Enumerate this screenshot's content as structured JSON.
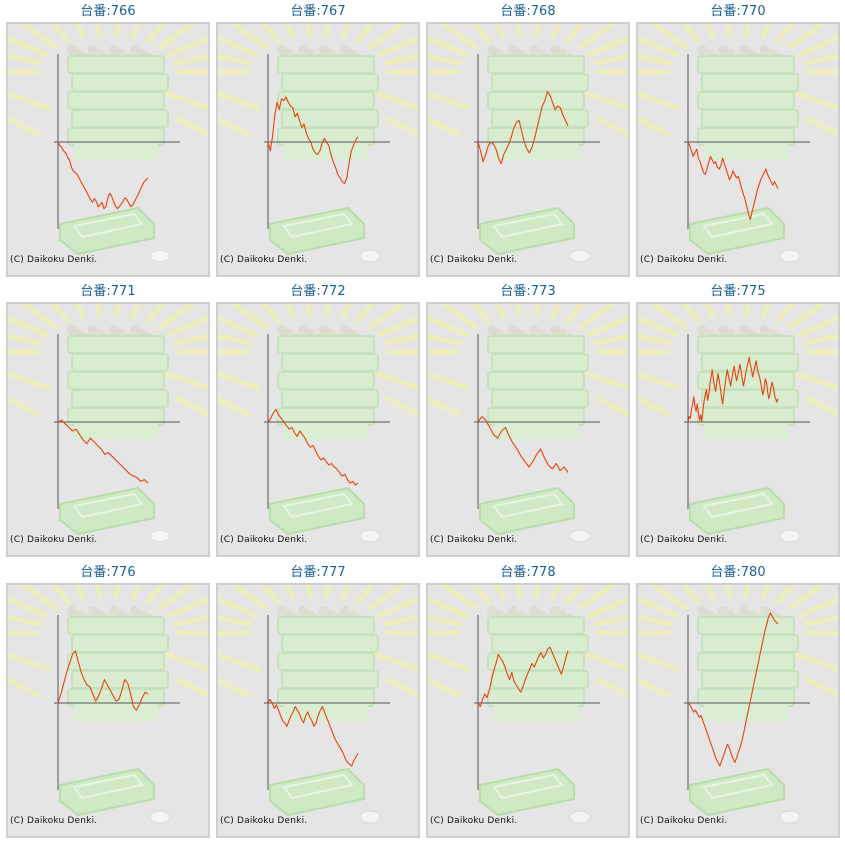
{
  "colors": {
    "series": "#e8420e",
    "axis": "#555555",
    "frame_border": "#cfcfcf",
    "panel_bg": "#e5e5e5",
    "title": "#1a5f96"
  },
  "chart_data": [
    {
      "type": "line",
      "title": "台番:766",
      "footer": "(C) Daikoku Denki.",
      "baseline": 0,
      "y": [
        0,
        -4,
        -6,
        -10,
        -12,
        -17,
        -20,
        -28,
        -32,
        -34,
        -36,
        -40,
        -44,
        -48,
        -52,
        -56,
        -60,
        -64,
        -67,
        -63,
        -66,
        -72,
        -70,
        -67,
        -74,
        -72,
        -62,
        -57,
        -60,
        -66,
        -71,
        -74,
        -72,
        -69,
        -66,
        -62,
        -64,
        -68,
        -72,
        -70,
        -66,
        -62,
        -58,
        -53,
        -48,
        -44,
        -42,
        -40
      ]
    },
    {
      "type": "line",
      "title": "台番:767",
      "footer": "(C) Daikoku Denki.",
      "baseline": 0,
      "y": [
        0,
        -10,
        6,
        30,
        44,
        36,
        48,
        46,
        50,
        44,
        40,
        38,
        28,
        32,
        24,
        16,
        20,
        10,
        4,
        0,
        -8,
        -12,
        -14,
        -10,
        -2,
        4,
        0,
        -4,
        -14,
        -22,
        -28,
        -36,
        -40,
        -44,
        -46,
        -40,
        -24,
        -10,
        -4,
        2,
        6
      ]
    },
    {
      "type": "line",
      "title": "台番:768",
      "footer": "(C) Daikoku Denki.",
      "baseline": 0,
      "y": [
        0,
        -10,
        -22,
        -14,
        -4,
        0,
        -2,
        -8,
        -18,
        -24,
        -14,
        -8,
        -2,
        6,
        16,
        22,
        24,
        12,
        0,
        -8,
        -12,
        -6,
        4,
        16,
        28,
        40,
        46,
        56,
        52,
        44,
        36,
        40,
        38,
        30,
        24,
        18
      ]
    },
    {
      "type": "line",
      "title": "台番:770",
      "footer": "(C) Daikoku Denki.",
      "baseline": 0,
      "y": [
        0,
        -4,
        -10,
        -16,
        -12,
        -8,
        -18,
        -22,
        -28,
        -34,
        -36,
        -30,
        -22,
        -16,
        -20,
        -24,
        -22,
        -28,
        -30,
        -26,
        -18,
        -24,
        -30,
        -36,
        -42,
        -38,
        -32,
        -36,
        -40,
        -38,
        -44,
        -52,
        -58,
        -64,
        -72,
        -80,
        -86,
        -78,
        -70,
        -62,
        -54,
        -48,
        -42,
        -38,
        -34,
        -30,
        -36,
        -40,
        -44,
        -48,
        -44,
        -48,
        -52
      ]
    },
    {
      "type": "line",
      "title": "台番:771",
      "footer": "(C) Daikoku Denki.",
      "baseline": 0,
      "y": [
        0,
        2,
        -2,
        -6,
        -10,
        -8,
        -14,
        -20,
        -24,
        -18,
        -22,
        -26,
        -30,
        -36,
        -34,
        -38,
        -42,
        -46,
        -50,
        -54,
        -58,
        -60,
        -62,
        -66,
        -64,
        -68
      ]
    },
    {
      "type": "line",
      "title": "台番:772",
      "footer": "(C) Daikoku Denki.",
      "baseline": 0,
      "y": [
        0,
        4,
        10,
        14,
        8,
        4,
        0,
        -4,
        -8,
        -6,
        -12,
        -16,
        -10,
        -14,
        -18,
        -24,
        -28,
        -26,
        -32,
        -38,
        -42,
        -40,
        -44,
        -48,
        -46,
        -50,
        -52,
        -56,
        -60,
        -58,
        -64,
        -68,
        -66,
        -70,
        -68
      ]
    },
    {
      "type": "line",
      "title": "台番:773",
      "footer": "(C) Daikoku Denki.",
      "baseline": 0,
      "y": [
        0,
        6,
        2,
        -6,
        -14,
        -18,
        -10,
        -6,
        -16,
        -24,
        -30,
        -38,
        -44,
        -50,
        -44,
        -36,
        -30,
        -40,
        -48,
        -52,
        -46,
        -54,
        -50,
        -56
      ]
    },
    {
      "type": "line",
      "title": "台番:775",
      "footer": "(C) Daikoku Denki.",
      "baseline": 0,
      "y": [
        0,
        6,
        4,
        14,
        20,
        28,
        18,
        12,
        20,
        10,
        2,
        8,
        0,
        14,
        24,
        30,
        36,
        24,
        30,
        42,
        50,
        58,
        48,
        40,
        34,
        44,
        54,
        46,
        38,
        28,
        20,
        30,
        40,
        50,
        58,
        52,
        46,
        40,
        48,
        56,
        62,
        54,
        46,
        50,
        58,
        64,
        56,
        48,
        40,
        46,
        54,
        60,
        66,
        72,
        64,
        58,
        50,
        56,
        62,
        68,
        60,
        54,
        50,
        44,
        36,
        30,
        38,
        48,
        44,
        34,
        26,
        30,
        40,
        44,
        38,
        30,
        26,
        22,
        26
      ]
    },
    {
      "type": "line",
      "title": "台番:776",
      "footer": "(C) Daikoku Denki.",
      "baseline": 0,
      "y": [
        0,
        10,
        22,
        34,
        44,
        54,
        58,
        46,
        34,
        26,
        20,
        18,
        10,
        2,
        8,
        16,
        26,
        20,
        14,
        8,
        2,
        4,
        14,
        26,
        22,
        10,
        -4,
        -8,
        -2,
        6,
        12,
        10
      ]
    },
    {
      "type": "line",
      "title": "台番:777",
      "footer": "(C) Daikoku Denki.",
      "baseline": 0,
      "y": [
        0,
        4,
        0,
        -6,
        -2,
        -8,
        -14,
        -20,
        -22,
        -26,
        -20,
        -14,
        -10,
        -4,
        -8,
        -12,
        -18,
        -22,
        -14,
        -10,
        -16,
        -20,
        -26,
        -22,
        -14,
        -8,
        -4,
        -10,
        -16,
        -22,
        -28,
        -34,
        -40,
        -44,
        -48,
        -52,
        -56,
        -62,
        -66,
        -68,
        -70,
        -64,
        -60,
        -56
      ]
    },
    {
      "type": "line",
      "title": "台番:778",
      "footer": "(C) Daikoku Denki.",
      "baseline": 0,
      "y": [
        0,
        -4,
        4,
        10,
        6,
        14,
        26,
        36,
        44,
        54,
        50,
        46,
        40,
        32,
        26,
        34,
        24,
        20,
        16,
        12,
        18,
        26,
        32,
        38,
        44,
        40,
        46,
        52,
        56,
        50,
        54,
        60,
        62,
        56,
        50,
        44,
        38,
        32,
        40,
        50,
        58
      ]
    },
    {
      "type": "line",
      "title": "台番:780",
      "footer": "(C) Daikoku Denki.",
      "baseline": 0,
      "y": [
        0,
        -2,
        -6,
        -10,
        -8,
        -12,
        -16,
        -14,
        -20,
        -26,
        -32,
        -38,
        -44,
        -50,
        -56,
        -62,
        -66,
        -70,
        -64,
        -58,
        -52,
        -46,
        -50,
        -56,
        -62,
        -66,
        -60,
        -54,
        -48,
        -40,
        -30,
        -20,
        -10,
        0,
        10,
        20,
        30,
        40,
        50,
        60,
        70,
        80,
        88,
        96,
        100,
        96,
        92,
        90,
        88
      ]
    }
  ]
}
